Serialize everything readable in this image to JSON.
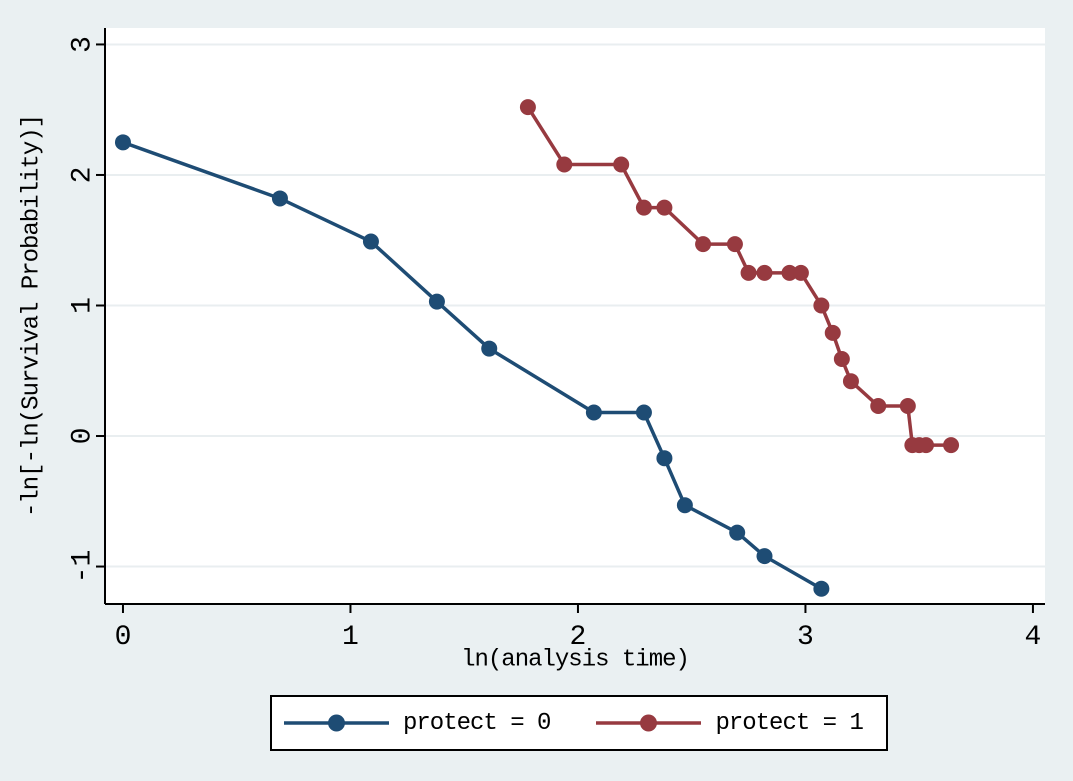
{
  "figure": {
    "background": "#eaf0f2",
    "plot_background": "#ffffff",
    "grid_color": "#e9eef0",
    "axis_color": "#000000",
    "text_color": "#000000"
  },
  "chart_data": {
    "type": "line",
    "title": "",
    "xlabel": "ln(analysis time)",
    "ylabel": "-ln[-ln(Survival Probability)]",
    "xlim": [
      -0.079,
      4.053
    ],
    "ylim": [
      -1.287,
      3.126
    ],
    "x_ticks": [
      0,
      1,
      2,
      3,
      4
    ],
    "y_ticks": [
      -1,
      0,
      1,
      2,
      3
    ],
    "grid": "horizontal",
    "legend_position": "bottom-center",
    "marker": "circle",
    "series": [
      {
        "name": "protect = 0",
        "color": "#1e4c74",
        "x": [
          0,
          0.69,
          1.09,
          1.38,
          1.61,
          2.07,
          2.29,
          2.38,
          2.47,
          2.7,
          2.82,
          3.07
        ],
        "y": [
          2.25,
          1.82,
          1.49,
          1.03,
          0.67,
          0.18,
          0.18,
          -0.17,
          -0.53,
          -0.74,
          -0.92,
          -1.17
        ]
      },
      {
        "name": "protect = 1",
        "color": "#973a40",
        "x": [
          1.78,
          1.94,
          2.19,
          2.29,
          2.38,
          2.55,
          2.69,
          2.75,
          2.82,
          2.93,
          2.98,
          3.07,
          3.12,
          3.16,
          3.2,
          3.32,
          3.45,
          3.47,
          3.5,
          3.53,
          3.64
        ],
        "y": [
          2.52,
          2.08,
          2.08,
          1.75,
          1.75,
          1.47,
          1.47,
          1.25,
          1.25,
          1.25,
          1.25,
          1.0,
          0.79,
          0.59,
          0.42,
          0.23,
          0.23,
          -0.07,
          -0.07,
          -0.07,
          -0.07
        ]
      }
    ]
  },
  "legend": {
    "items": [
      {
        "label": "protect = 0",
        "color": "#1e4c74"
      },
      {
        "label": "protect = 1",
        "color": "#973a40"
      }
    ]
  }
}
